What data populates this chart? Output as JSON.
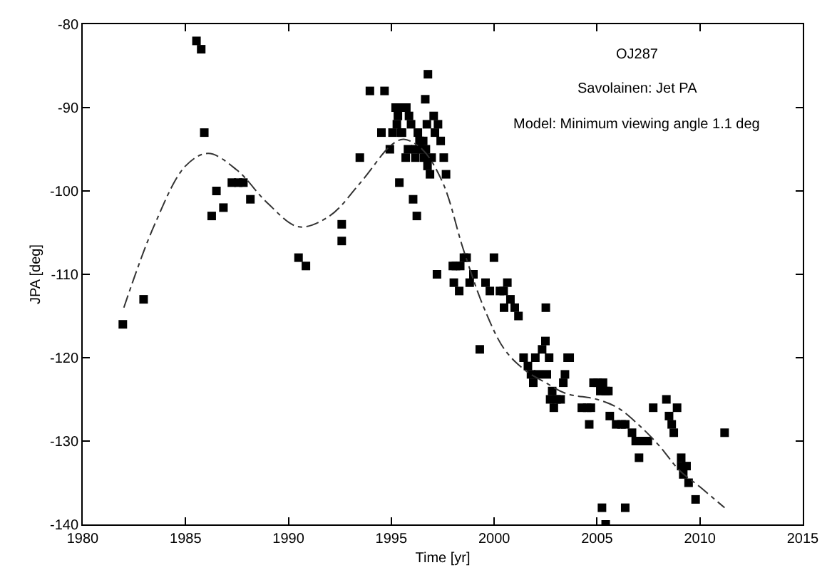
{
  "chart_data": {
    "type": "scatter",
    "xlabel": "Time [yr]",
    "ylabel": "JPA [deg]",
    "annotations": [
      "OJ287",
      "Savolainen: Jet PA",
      "Model: Minimum viewing angle 1.1 deg"
    ],
    "xlim": [
      1980,
      2015
    ],
    "xticks": [
      1980,
      1985,
      1990,
      1995,
      2000,
      2005,
      2010,
      2015
    ],
    "ylim": [
      -140,
      -80
    ],
    "yticks": [
      -140,
      -130,
      -120,
      -110,
      -100,
      -90,
      -80
    ],
    "marker": "square",
    "series": [
      {
        "color": "#000000",
        "x": [
          1981.95,
          1982.96,
          1985.53,
          1985.76,
          1985.91,
          1986.27,
          1986.5,
          1986.84,
          1987.25,
          1987.56,
          1987.81,
          1988.15,
          1990.49,
          1990.85,
          1992.59,
          1992.59,
          1993.47,
          1993.96,
          1994.67,
          1994.52,
          1994.93,
          1995.06,
          1995.21,
          1995.34,
          1995.27,
          1995.32,
          1995.47,
          1995.52,
          1995.39,
          1995.73,
          1995.86,
          1995.96,
          1995.81,
          1995.7,
          1996.17,
          1996.17,
          1996.06,
          1996.24,
          1996.29,
          1996.37,
          1996.47,
          1996.55,
          1996.6,
          1996.68,
          1996.76,
          1996.88,
          1996.96,
          1996.65,
          1996.78,
          1996.73,
          1997.06,
          1997.27,
          1997.12,
          1997.4,
          1997.55,
          1997.66,
          1997.22,
          1997.99,
          1998.14,
          1998.04,
          1998.3,
          1998.35,
          1998.53,
          1998.66,
          1998.81,
          1998.99,
          1999.3,
          1999.58,
          1999.79,
          1999.99,
          2000.28,
          2000.46,
          2000.64,
          2000.48,
          2000.79,
          2001.0,
          2001.18,
          2001.43,
          2001.64,
          2001.9,
          2001.79,
          2002.0,
          2002.15,
          2002.33,
          2002.49,
          2002.51,
          2002.56,
          2002.67,
          2002.72,
          2002.82,
          2002.9,
          2003.03,
          2003.23,
          2003.36,
          2003.44,
          2003.57,
          2003.67,
          2004.26,
          2004.52,
          2004.7,
          2004.62,
          2004.83,
          2005.03,
          2005.16,
          2005.29,
          2005.42,
          2005.55,
          2005.24,
          2005.42,
          2005.62,
          2005.93,
          2006.19,
          2006.37,
          2006.37,
          2006.7,
          2006.88,
          2007.04,
          2007.14,
          2007.47,
          2007.73,
          2008.37,
          2008.5,
          2008.63,
          2008.73,
          2008.89,
          2009.09,
          2009.09,
          2009.19,
          2009.35,
          2009.45,
          2009.79,
          2011.2
        ],
        "values": [
          -116,
          -113,
          -82,
          -83,
          -93,
          -103,
          -100,
          -102,
          -99,
          -99,
          -99,
          -101,
          -108,
          -109,
          -104,
          -106,
          -96,
          -88,
          -88,
          -93,
          -95,
          -93,
          -90,
          -90,
          -92,
          -91,
          -93,
          -93,
          -99,
          -90,
          -91,
          -92,
          -95,
          -96,
          -96,
          -95,
          -101,
          -103,
          -93,
          -94,
          -95,
          -94,
          -96,
          -95,
          -97,
          -98,
          -96,
          -89,
          -86,
          -92,
          -91,
          -92,
          -93,
          -94,
          -96,
          -98,
          -110,
          -109,
          -109,
          -111,
          -112,
          -109,
          -108,
          -108,
          -111,
          -110,
          -119,
          -111,
          -112,
          -108,
          -112,
          -112,
          -111,
          -114,
          -113,
          -114,
          -115,
          -120,
          -121,
          -123,
          -122,
          -120,
          -122,
          -119,
          -118,
          -114,
          -122,
          -120,
          -125,
          -124,
          -126,
          -125,
          -125,
          -123,
          -122,
          -120,
          -120,
          -126,
          -126,
          -126,
          -128,
          -123,
          -123,
          -124,
          -123,
          -124,
          -124,
          -138,
          -140,
          -127,
          -128,
          -128,
          -128,
          -138,
          -129,
          -130,
          -132,
          -130,
          -130,
          -126,
          -125,
          -127,
          -128,
          -129,
          -126,
          -132,
          -133,
          -134,
          -133,
          -135,
          -137,
          -129
        ]
      },
      {
        "type": "line",
        "marker": "none",
        "line_style": "dashed",
        "color": "#333333",
        "x": [
          1982,
          1983.5,
          1985,
          1986.1,
          1987.5,
          1989,
          1990.5,
          1992,
          1993.5,
          1995,
          1995.6,
          1996.5,
          1997.5,
          1998.5,
          1999.5,
          2000.5,
          2001.5,
          2002.5,
          2003.5,
          2005,
          2006,
          2007,
          2008,
          2009,
          2010,
          2011.2
        ],
        "values": [
          -114,
          -104,
          -97,
          -95.5,
          -97.5,
          -101.5,
          -104.3,
          -103,
          -99,
          -94.5,
          -93.8,
          -95,
          -99,
          -107,
          -114,
          -119,
          -121.5,
          -123,
          -124.3,
          -125,
          -126,
          -128,
          -130.5,
          -133.5,
          -135.5,
          -138
        ]
      }
    ]
  }
}
